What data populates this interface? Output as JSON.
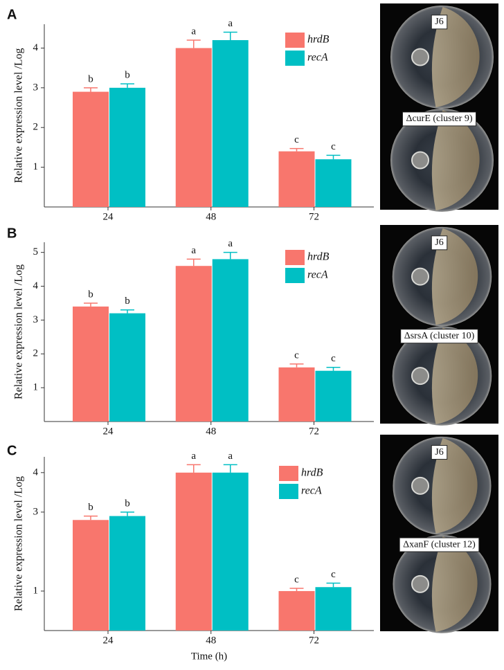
{
  "chart_data": [
    {
      "type": "bar",
      "panel": "A",
      "ylabel": "Relative expression level /Log",
      "categories": [
        "24",
        "48",
        "72"
      ],
      "ylim": [
        0,
        4.6
      ],
      "yticks": [
        1,
        2,
        3,
        4
      ],
      "series": [
        {
          "name": "hrdB",
          "color": "#f8766d",
          "values": [
            2.9,
            4.0,
            1.4
          ],
          "errors": [
            0.1,
            0.2,
            0.07
          ],
          "letters": [
            "b",
            "a",
            "c"
          ]
        },
        {
          "name": "recA",
          "color": "#00bfc4",
          "values": [
            3.0,
            4.2,
            1.2
          ],
          "errors": [
            0.1,
            0.2,
            0.1
          ],
          "letters": [
            "b",
            "a",
            "c"
          ]
        }
      ],
      "photo_labels": [
        "J6",
        "ΔcurE (cluster 9)"
      ]
    },
    {
      "type": "bar",
      "panel": "B",
      "ylabel": "Relative expression level /Log",
      "categories": [
        "24",
        "48",
        "72"
      ],
      "ylim": [
        0,
        5.3
      ],
      "yticks": [
        1,
        2,
        3,
        4,
        5
      ],
      "series": [
        {
          "name": "hrdB",
          "color": "#f8766d",
          "values": [
            3.4,
            4.6,
            1.6
          ],
          "errors": [
            0.1,
            0.2,
            0.1
          ],
          "letters": [
            "b",
            "a",
            "c"
          ]
        },
        {
          "name": "recA",
          "color": "#00bfc4",
          "values": [
            3.2,
            4.8,
            1.5
          ],
          "errors": [
            0.1,
            0.2,
            0.1
          ],
          "letters": [
            "b",
            "a",
            "c"
          ]
        }
      ],
      "photo_labels": [
        "J6",
        "ΔsrsA (cluster 10)"
      ]
    },
    {
      "type": "bar",
      "panel": "C",
      "ylabel": "Relative expression level /Log",
      "xlabel": "Time (h)",
      "categories": [
        "24",
        "48",
        "72"
      ],
      "ylim": [
        0,
        4.4
      ],
      "yticks": [
        1,
        3,
        4
      ],
      "series": [
        {
          "name": "hrdB",
          "color": "#f8766d",
          "values": [
            2.8,
            4.0,
            1.0
          ],
          "errors": [
            0.1,
            0.2,
            0.07
          ],
          "letters": [
            "b",
            "a",
            "c"
          ]
        },
        {
          "name": "recA",
          "color": "#00bfc4",
          "values": [
            2.9,
            4.0,
            1.1
          ],
          "errors": [
            0.1,
            0.2,
            0.1
          ],
          "letters": [
            "b",
            "a",
            "c"
          ]
        }
      ],
      "photo_labels": [
        "J6",
        "ΔxanF (cluster 12)"
      ]
    }
  ]
}
